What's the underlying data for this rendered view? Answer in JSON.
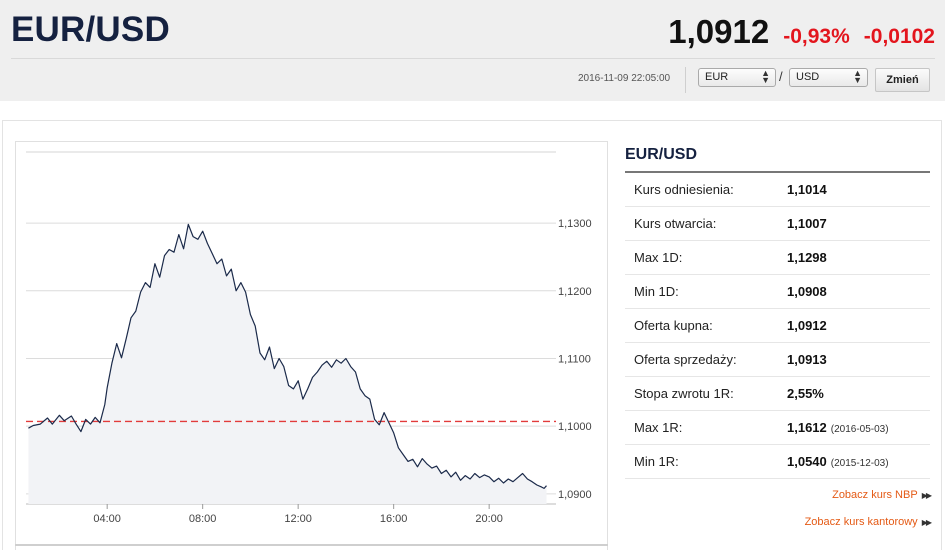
{
  "header": {
    "title": "EUR/USD",
    "price": "1,0912",
    "change_pct": "-0,93%",
    "change_abs": "-0,0102",
    "timestamp": "2016-11-09 22:05:00",
    "from_currency": "EUR",
    "to_currency": "USD",
    "separator": "/",
    "change_button": "Zmień"
  },
  "panel": {
    "title": "EUR/USD",
    "rows": [
      {
        "label": "Kurs odniesienia:",
        "value": "1,1014",
        "date": ""
      },
      {
        "label": "Kurs otwarcia:",
        "value": "1,1007",
        "date": ""
      },
      {
        "label": "Max 1D:",
        "value": "1,1298",
        "date": ""
      },
      {
        "label": "Min 1D:",
        "value": "1,0908",
        "date": ""
      },
      {
        "label": "Oferta kupna:",
        "value": "1,0912",
        "date": ""
      },
      {
        "label": "Oferta sprzedaży:",
        "value": "1,0913",
        "date": ""
      },
      {
        "label": "Stopa zwrotu 1R:",
        "value": "2,55%",
        "date": ""
      },
      {
        "label": "Max 1R:",
        "value": "1,1612",
        "date": "(2016-05-03)"
      },
      {
        "label": "Min 1R:",
        "value": "1,0540",
        "date": "(2015-12-03)"
      }
    ],
    "link_nbp": "Zobacz kurs NBP",
    "link_kantor": "Zobacz kurs kantorowy"
  },
  "colors": {
    "negative": "#e3151d",
    "line": "#1b2a4a",
    "reference": "#e23b3b",
    "link": "#e45a15",
    "title": "#152140"
  },
  "chart_data": {
    "type": "line",
    "title": "",
    "xlabel": "",
    "ylabel": "",
    "ylim": [
      1.0885,
      1.1405
    ],
    "xlim": [
      0.6,
      22.8
    ],
    "x_ticks": [
      4,
      8,
      12,
      16,
      20
    ],
    "x_tick_labels": [
      "04:00",
      "08:00",
      "12:00",
      "16:00",
      "20:00"
    ],
    "y_ticks": [
      1.09,
      1.1,
      1.11,
      1.12,
      1.13
    ],
    "y_tick_labels": [
      "1,0900",
      "1,1000",
      "1,1100",
      "1,1200",
      "1,1300"
    ],
    "reference_line": 1.1007,
    "grid": true,
    "series": [
      {
        "values": [
          [
            0.7,
            1.0997
          ],
          [
            0.9,
            1.1001
          ],
          [
            1.2,
            1.1003
          ],
          [
            1.5,
            1.1012
          ],
          [
            1.7,
            1.1003
          ],
          [
            2.0,
            1.1016
          ],
          [
            2.2,
            1.1008
          ],
          [
            2.5,
            1.1015
          ],
          [
            2.7,
            1.1003
          ],
          [
            2.9,
            1.0992
          ],
          [
            3.1,
            1.101
          ],
          [
            3.3,
            1.1003
          ],
          [
            3.5,
            1.1013
          ],
          [
            3.7,
            1.1005
          ],
          [
            3.9,
            1.1032
          ],
          [
            4.0,
            1.1057
          ],
          [
            4.2,
            1.1093
          ],
          [
            4.4,
            1.1122
          ],
          [
            4.6,
            1.1101
          ],
          [
            4.8,
            1.113
          ],
          [
            5.0,
            1.116
          ],
          [
            5.2,
            1.117
          ],
          [
            5.4,
            1.1198
          ],
          [
            5.6,
            1.1212
          ],
          [
            5.8,
            1.1205
          ],
          [
            6.0,
            1.124
          ],
          [
            6.2,
            1.122
          ],
          [
            6.4,
            1.1252
          ],
          [
            6.6,
            1.1261
          ],
          [
            6.8,
            1.1257
          ],
          [
            7.0,
            1.1283
          ],
          [
            7.2,
            1.1262
          ],
          [
            7.4,
            1.1298
          ],
          [
            7.6,
            1.128
          ],
          [
            7.8,
            1.1276
          ],
          [
            8.0,
            1.1288
          ],
          [
            8.2,
            1.127
          ],
          [
            8.4,
            1.1255
          ],
          [
            8.6,
            1.124
          ],
          [
            8.8,
            1.1247
          ],
          [
            9.0,
            1.1222
          ],
          [
            9.2,
            1.1232
          ],
          [
            9.4,
            1.12
          ],
          [
            9.6,
            1.1212
          ],
          [
            9.8,
            1.1198
          ],
          [
            10.0,
            1.1165
          ],
          [
            10.2,
            1.1148
          ],
          [
            10.4,
            1.1108
          ],
          [
            10.6,
            1.1098
          ],
          [
            10.8,
            1.1117
          ],
          [
            11.0,
            1.1085
          ],
          [
            11.2,
            1.11
          ],
          [
            11.4,
            1.1088
          ],
          [
            11.6,
            1.106
          ],
          [
            11.8,
            1.1055
          ],
          [
            12.0,
            1.1067
          ],
          [
            12.2,
            1.104
          ],
          [
            12.4,
            1.1055
          ],
          [
            12.6,
            1.1072
          ],
          [
            12.8,
            1.108
          ],
          [
            13.0,
            1.109
          ],
          [
            13.2,
            1.1096
          ],
          [
            13.4,
            1.1087
          ],
          [
            13.6,
            1.1098
          ],
          [
            13.8,
            1.1093
          ],
          [
            14.0,
            1.11
          ],
          [
            14.2,
            1.1088
          ],
          [
            14.4,
            1.108
          ],
          [
            14.6,
            1.1055
          ],
          [
            14.8,
            1.1045
          ],
          [
            15.0,
            1.104
          ],
          [
            15.2,
            1.101
          ],
          [
            15.4,
            1.1002
          ],
          [
            15.6,
            1.102
          ],
          [
            15.8,
            1.1005
          ],
          [
            16.0,
            1.099
          ],
          [
            16.2,
            1.0968
          ],
          [
            16.4,
            1.0958
          ],
          [
            16.6,
            1.0948
          ],
          [
            16.8,
            1.0951
          ],
          [
            17.0,
            1.094
          ],
          [
            17.2,
            1.0952
          ],
          [
            17.4,
            1.0944
          ],
          [
            17.6,
            1.0938
          ],
          [
            17.8,
            1.0941
          ],
          [
            18.0,
            1.093
          ],
          [
            18.2,
            1.0935
          ],
          [
            18.4,
            1.0925
          ],
          [
            18.6,
            1.0932
          ],
          [
            18.8,
            1.092
          ],
          [
            19.0,
            1.0927
          ],
          [
            19.2,
            1.0922
          ],
          [
            19.4,
            1.093
          ],
          [
            19.6,
            1.0924
          ],
          [
            19.8,
            1.0928
          ],
          [
            20.0,
            1.0925
          ],
          [
            20.2,
            1.0918
          ],
          [
            20.4,
            1.0923
          ],
          [
            20.6,
            1.0916
          ],
          [
            20.8,
            1.0922
          ],
          [
            21.0,
            1.0918
          ],
          [
            21.2,
            1.0924
          ],
          [
            21.4,
            1.093
          ],
          [
            21.6,
            1.0922
          ],
          [
            21.8,
            1.0918
          ],
          [
            22.0,
            1.0913
          ],
          [
            22.2,
            1.091
          ],
          [
            22.3,
            1.0908
          ],
          [
            22.4,
            1.0912
          ]
        ]
      }
    ]
  }
}
